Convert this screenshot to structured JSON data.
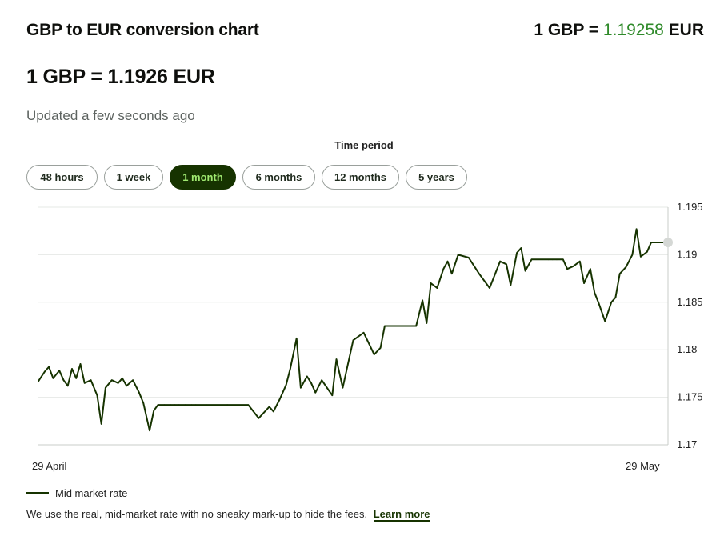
{
  "header": {
    "title": "GBP to EUR conversion chart",
    "rate_prefix": "1 GBP = ",
    "rate_value": "1.19258",
    "rate_suffix": " EUR",
    "big_rate": "1 GBP = 1.1926 EUR",
    "updated": "Updated a few seconds ago"
  },
  "time_period": {
    "label": "Time period",
    "options": [
      "48 hours",
      "1 week",
      "1 month",
      "6 months",
      "12 months",
      "5 years"
    ],
    "selected": "1 month"
  },
  "legend": {
    "label": "Mid market rate"
  },
  "footnote": {
    "text": "We use the real, mid-market rate with no sneaky mark-up to hide the fees.",
    "link": "Learn more"
  },
  "colors": {
    "line": "#163300",
    "accent_green": "#2f8a2a",
    "active_pill_bg": "#163300",
    "active_pill_text": "#9fe870"
  },
  "chart_data": {
    "type": "line",
    "title": "GBP to EUR conversion chart",
    "xlabel": "",
    "ylabel": "",
    "x_tick_labels": [
      "29 April",
      "29 May"
    ],
    "y_ticks": [
      1.17,
      1.175,
      1.18,
      1.185,
      1.19,
      1.195
    ],
    "ylim": [
      1.17,
      1.195
    ],
    "grid": true,
    "series": [
      {
        "name": "Mid market rate",
        "x": [
          0,
          0.3,
          0.5,
          0.7,
          1,
          1.2,
          1.4,
          1.6,
          1.8,
          2,
          2.2,
          2.5,
          2.8,
          3,
          3.2,
          3.5,
          3.8,
          4,
          4.2,
          4.5,
          4.8,
          5,
          5.3,
          5.5,
          5.7,
          6,
          6.3,
          6.5,
          6.7,
          7,
          7.3,
          7.5,
          8,
          9,
          10,
          10.5,
          11,
          11.2,
          11.5,
          11.8,
          12,
          12.3,
          12.5,
          12.8,
          13,
          13.2,
          13.5,
          14,
          14.2,
          14.5,
          15,
          15.5,
          16,
          16.3,
          16.5,
          16.7,
          17,
          17.5,
          18,
          18.3,
          18.5,
          18.7,
          19,
          19.3,
          19.5,
          19.7,
          20,
          20.5,
          21,
          21.5,
          22,
          22.3,
          22.5,
          22.8,
          23,
          23.2,
          23.5,
          24,
          24.3,
          24.5,
          24.7,
          25,
          25.2,
          25.5,
          25.8,
          26,
          26.3,
          26.5,
          26.7,
          27,
          27.3,
          27.5,
          27.7,
          28,
          28.3,
          28.5,
          28.7,
          29,
          29.2,
          29.5,
          29.7,
          30
        ],
        "y": [
          1.1767,
          1.1777,
          1.1782,
          1.177,
          1.1778,
          1.1768,
          1.1762,
          1.178,
          1.177,
          1.1785,
          1.1765,
          1.1768,
          1.1752,
          1.1722,
          1.176,
          1.1768,
          1.1765,
          1.177,
          1.1762,
          1.1768,
          1.1755,
          1.1744,
          1.1715,
          1.1736,
          1.1742,
          1.1742,
          1.1742,
          1.1742,
          1.1742,
          1.1742,
          1.1742,
          1.1742,
          1.1742,
          1.1742,
          1.1742,
          1.1728,
          1.174,
          1.1735,
          1.1748,
          1.1763,
          1.178,
          1.1812,
          1.176,
          1.1772,
          1.1765,
          1.1755,
          1.1768,
          1.1752,
          1.179,
          1.176,
          1.181,
          1.1818,
          1.1795,
          1.1802,
          1.1825,
          1.1825,
          1.1825,
          1.1825,
          1.1825,
          1.1852,
          1.1828,
          1.187,
          1.1865,
          1.1885,
          1.1893,
          1.188,
          1.19,
          1.1897,
          1.188,
          1.1865,
          1.1893,
          1.189,
          1.1868,
          1.1902,
          1.1907,
          1.1883,
          1.1895,
          1.1895,
          1.1895,
          1.1895,
          1.1895,
          1.1895,
          1.1885,
          1.1888,
          1.1893,
          1.187,
          1.1885,
          1.186,
          1.1849,
          1.183,
          1.185,
          1.1855,
          1.188,
          1.1887,
          1.19,
          1.1927,
          1.1898,
          1.1903,
          1.1913,
          1.1913,
          1.1913,
          1.1913
        ]
      }
    ]
  }
}
